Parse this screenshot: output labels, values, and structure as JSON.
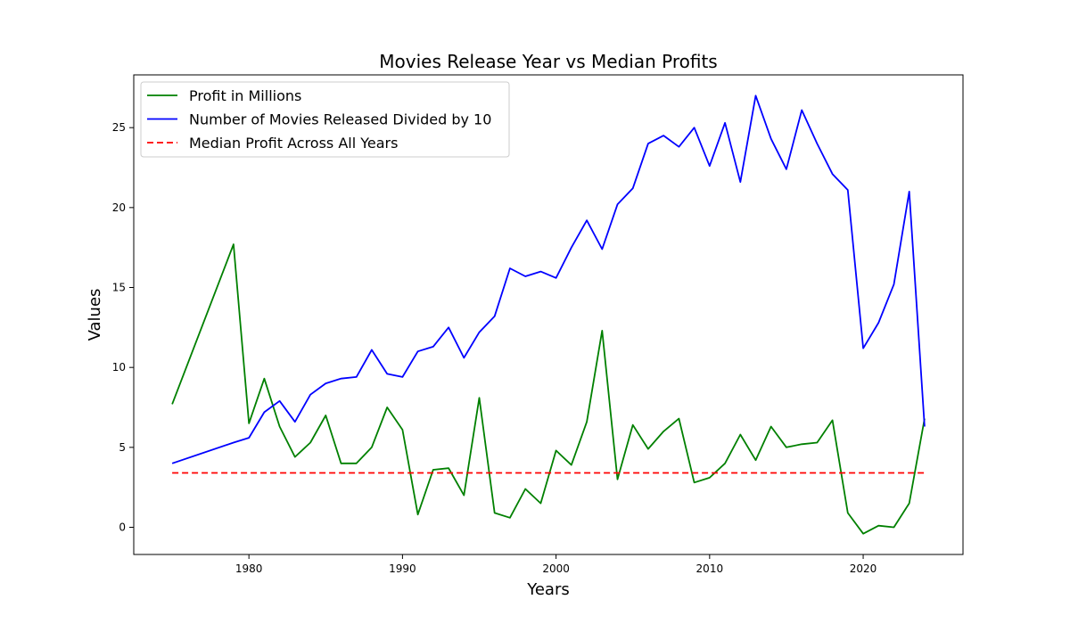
{
  "chart_data": {
    "type": "line",
    "title": "Movies Release Year vs Median Profits",
    "xlabel": "Years",
    "ylabel": "Values",
    "xlim": [
      1972.5,
      2026.5
    ],
    "ylim": [
      -1.7,
      28.3
    ],
    "xticks": [
      1980,
      1990,
      2000,
      2010,
      2020
    ],
    "yticks": [
      0,
      5,
      10,
      15,
      20,
      25
    ],
    "grid": false,
    "legend_position": "upper-left",
    "series": [
      {
        "name": "Profit in Millions",
        "color": "#008000",
        "style": "solid",
        "x": [
          1975,
          1979,
          1980,
          1981,
          1982,
          1983,
          1984,
          1985,
          1986,
          1987,
          1988,
          1989,
          1990,
          1991,
          1992,
          1993,
          1994,
          1995,
          1996,
          1997,
          1998,
          1999,
          2000,
          2001,
          2002,
          2003,
          2004,
          2005,
          2006,
          2007,
          2008,
          2009,
          2010,
          2011,
          2012,
          2013,
          2014,
          2015,
          2016,
          2017,
          2018,
          2019,
          2020,
          2021,
          2022,
          2023,
          2024
        ],
        "y": [
          7.7,
          17.7,
          6.5,
          9.3,
          6.3,
          4.4,
          5.3,
          7.0,
          4.0,
          4.0,
          5.0,
          7.5,
          6.1,
          0.8,
          3.6,
          3.7,
          2.0,
          8.1,
          0.9,
          0.6,
          2.4,
          1.5,
          4.8,
          3.9,
          6.6,
          12.3,
          3.0,
          6.4,
          4.9,
          6.0,
          6.8,
          2.8,
          3.1,
          4.0,
          5.8,
          4.2,
          6.3,
          5.0,
          5.2,
          5.3,
          6.7,
          0.9,
          -0.4,
          0.1,
          0.0,
          1.5,
          6.8
        ]
      },
      {
        "name": "Number of Movies Released Divided by 10",
        "color": "#0000ff",
        "style": "solid",
        "x": [
          1975,
          1979,
          1980,
          1981,
          1982,
          1983,
          1984,
          1985,
          1986,
          1987,
          1988,
          1989,
          1990,
          1991,
          1992,
          1993,
          1994,
          1995,
          1996,
          1997,
          1998,
          1999,
          2000,
          2001,
          2002,
          2003,
          2004,
          2005,
          2006,
          2007,
          2008,
          2009,
          2010,
          2011,
          2012,
          2013,
          2014,
          2015,
          2016,
          2017,
          2018,
          2019,
          2020,
          2021,
          2022,
          2023,
          2024
        ],
        "y": [
          4.0,
          5.3,
          5.6,
          7.2,
          7.9,
          6.6,
          8.3,
          9.0,
          9.3,
          9.4,
          11.1,
          9.6,
          9.4,
          11.0,
          11.3,
          12.5,
          10.6,
          12.2,
          13.2,
          16.2,
          15.7,
          16.0,
          15.6,
          17.5,
          19.2,
          17.4,
          20.2,
          21.2,
          24.0,
          24.5,
          23.8,
          25.0,
          22.6,
          25.3,
          21.6,
          27.0,
          24.3,
          22.4,
          26.1,
          24.0,
          22.1,
          21.1,
          11.2,
          12.8,
          15.2,
          21.0,
          6.3
        ]
      },
      {
        "name": "Median Profit Across All Years",
        "color": "#ff0000",
        "style": "dashed",
        "x": [
          1975,
          2024
        ],
        "y": [
          3.4,
          3.4
        ]
      }
    ]
  }
}
